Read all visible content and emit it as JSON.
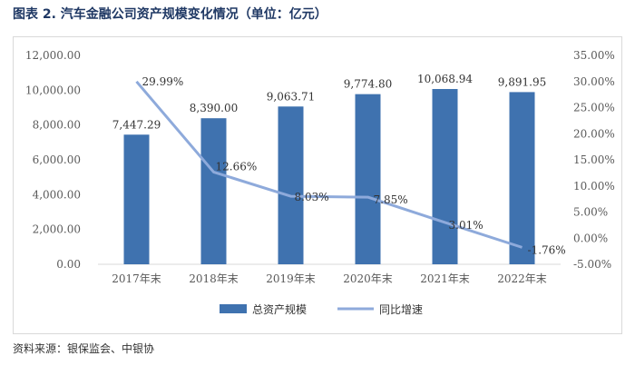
{
  "header": {
    "title": "图表 2. 汽车金融公司资产规模变化情况（单位：亿元）"
  },
  "footer": {
    "source": "资料来源：银保监会、中银协"
  },
  "colors": {
    "bar": "#3f72af",
    "line": "#8eaadb",
    "axis": "#d9d9d9"
  },
  "chart_data": {
    "type": "bar",
    "title": "图表 2. 汽车金融公司资产规模变化情况（单位：亿元）",
    "categories": [
      "2017年末",
      "2018年末",
      "2019年末",
      "2020年末",
      "2021年末",
      "2022年末"
    ],
    "series": [
      {
        "name": "总资产规模",
        "type": "bar",
        "axis": "left",
        "values": [
          7447.29,
          8390.0,
          9063.71,
          9774.8,
          10068.94,
          9891.95
        ],
        "labels": [
          "7,447.29",
          "8,390.00",
          "9,063.71",
          "9,774.80",
          "10,068.94",
          "9,891.95"
        ]
      },
      {
        "name": "同比增速",
        "type": "line",
        "axis": "right",
        "values": [
          29.99,
          12.66,
          8.03,
          7.85,
          3.01,
          -1.76
        ],
        "labels": [
          "29.99%",
          "12.66%",
          "8.03%",
          "7.85%",
          "3.01%",
          "-1.76%"
        ]
      }
    ],
    "y_left": {
      "min": 0,
      "max": 12000,
      "step": 2000,
      "tick_labels": [
        "0.00",
        "2,000.00",
        "4,000.00",
        "6,000.00",
        "8,000.00",
        "10,000.00",
        "12,000.00"
      ]
    },
    "y_right": {
      "min": -5,
      "max": 35,
      "step": 5,
      "tick_labels": [
        "-5.00%",
        "0.00%",
        "5.00%",
        "10.00%",
        "15.00%",
        "20.00%",
        "25.00%",
        "30.00%",
        "35.00%"
      ]
    },
    "legend": {
      "position": "bottom",
      "items": [
        "总资产规模",
        "同比增速"
      ]
    },
    "grid": false
  }
}
